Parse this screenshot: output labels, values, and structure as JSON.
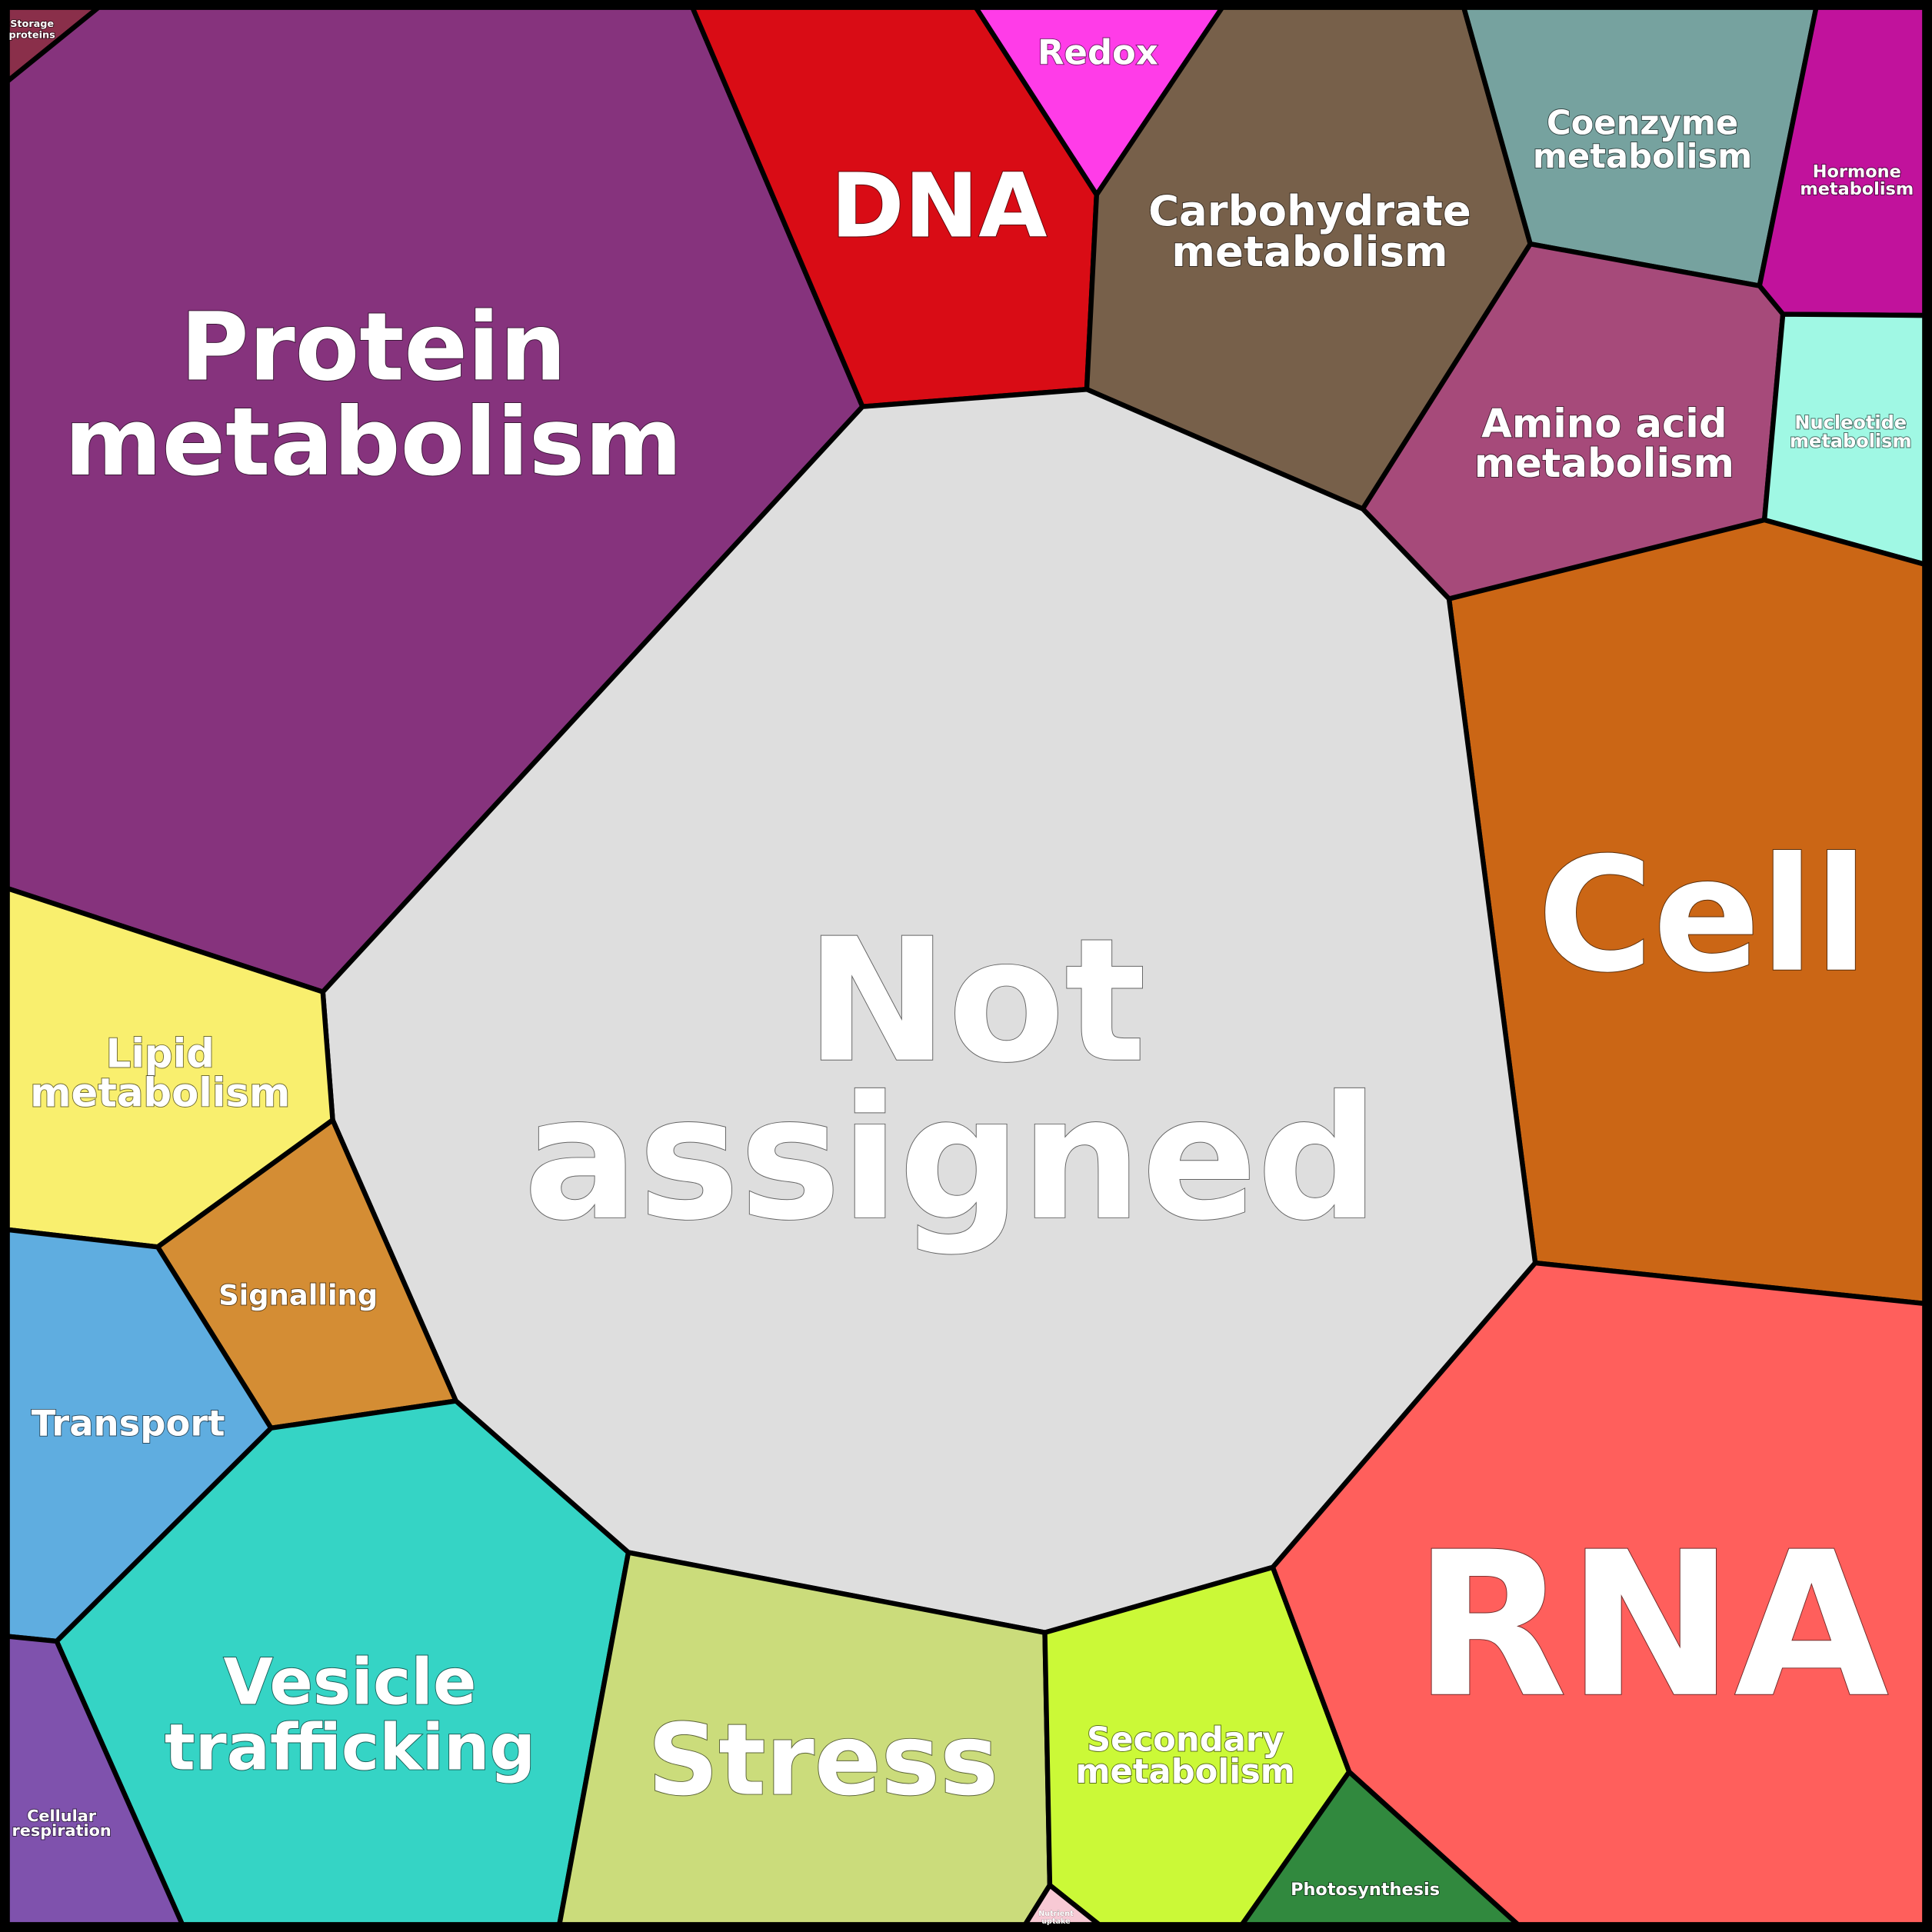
{
  "cells": [
    {
      "label": [
        "Storage",
        "proteins"
      ]
    },
    {
      "label": [
        "Protein",
        "metabolism"
      ]
    },
    {
      "label": [
        "DNA"
      ]
    },
    {
      "label": [
        "Redox"
      ]
    },
    {
      "label": [
        "Carbohydrate",
        "metabolism"
      ]
    },
    {
      "label": [
        "Coenzyme",
        "metabolism"
      ]
    },
    {
      "label": [
        "Hormone",
        "metabolism"
      ]
    },
    {
      "label": [
        "Amino acid",
        "metabolism"
      ]
    },
    {
      "label": [
        "Nucleotide",
        "metabolism"
      ]
    },
    {
      "label": [
        "Cell"
      ]
    },
    {
      "label": [
        "Not",
        "assigned"
      ]
    },
    {
      "label": [
        "Lipid",
        "metabolism"
      ]
    },
    {
      "label": [
        "Signalling"
      ]
    },
    {
      "label": [
        "Transport"
      ]
    },
    {
      "label": [
        "Vesicle",
        "trafficking"
      ]
    },
    {
      "label": [
        "Cellular",
        "respiration"
      ]
    },
    {
      "label": [
        "Stress"
      ]
    },
    {
      "label": [
        "Secondary",
        "metabolism"
      ]
    },
    {
      "label": [
        "Photosynthesis"
      ]
    },
    {
      "label": [
        "RNA"
      ]
    },
    {
      "label": [
        "Nutrient",
        "uptake"
      ]
    }
  ]
}
